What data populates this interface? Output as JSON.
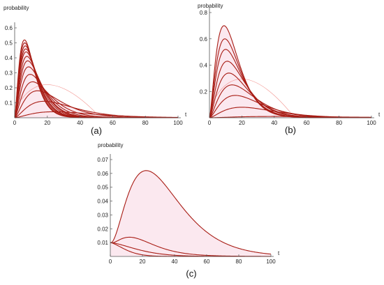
{
  "chart_data": [
    {
      "type": "line",
      "caption": "(a)",
      "ylabel": "probability",
      "xlabel": "t",
      "xlim": [
        0,
        100
      ],
      "ylim": [
        0,
        0.6
      ],
      "xticks": [
        0,
        20,
        40,
        60,
        80,
        100
      ],
      "xtick_labels": [
        "0",
        "20",
        "40",
        "60",
        "80",
        "100"
      ],
      "yticks": [
        0.1,
        0.2,
        0.3,
        0.4,
        0.5,
        0.6
      ],
      "ytick_labels": [
        "0.1",
        "0.2",
        "0.3",
        "0.4",
        "0.5",
        "0.6"
      ],
      "grid": false,
      "colors": {
        "curve": "#a81c14",
        "fill": "#f8d6e2",
        "highlight": "#e8281e"
      },
      "curves": [
        {
          "peak_t": 24,
          "peak_y": 0.04
        },
        {
          "peak_t": 18,
          "peak_y": 0.11
        },
        {
          "peak_t": 14,
          "peak_y": 0.18
        },
        {
          "peak_t": 11,
          "peak_y": 0.24
        },
        {
          "peak_t": 9.5,
          "peak_y": 0.29
        },
        {
          "peak_t": 8.5,
          "peak_y": 0.34
        },
        {
          "peak_t": 8,
          "peak_y": 0.38
        },
        {
          "peak_t": 7.5,
          "peak_y": 0.41
        },
        {
          "peak_t": 7,
          "peak_y": 0.44
        },
        {
          "peak_t": 6.8,
          "peak_y": 0.46
        },
        {
          "peak_t": 6.5,
          "peak_y": 0.48
        },
        {
          "peak_t": 6.2,
          "peak_y": 0.5
        },
        {
          "peak_t": 6,
          "peak_y": 0.52
        }
      ]
    },
    {
      "type": "line",
      "caption": "(b)",
      "ylabel": "probability",
      "xlabel": "t",
      "xlim": [
        0,
        100
      ],
      "ylim": [
        0,
        0.8
      ],
      "xticks": [
        0,
        20,
        40,
        60,
        80,
        100
      ],
      "xtick_labels": [
        "0",
        "20",
        "40",
        "60",
        "80",
        "100"
      ],
      "yticks": [
        0.2,
        0.4,
        0.6,
        0.8
      ],
      "ytick_labels": [
        "0.2",
        "0.4",
        "0.6",
        "0.8"
      ],
      "grid": false,
      "colors": {
        "curve": "#a81c14",
        "fill": "#f8d6e2",
        "highlight": "#e8281e"
      },
      "curves": [
        {
          "peak_t": 40,
          "peak_y": 0.01
        },
        {
          "peak_t": 20,
          "peak_y": 0.08
        },
        {
          "peak_t": 16,
          "peak_y": 0.17
        },
        {
          "peak_t": 14,
          "peak_y": 0.25
        },
        {
          "peak_t": 12,
          "peak_y": 0.34
        },
        {
          "peak_t": 11,
          "peak_y": 0.43
        },
        {
          "peak_t": 10,
          "peak_y": 0.52
        },
        {
          "peak_t": 9.5,
          "peak_y": 0.6
        },
        {
          "peak_t": 9,
          "peak_y": 0.7
        }
      ]
    },
    {
      "type": "line",
      "caption": "(c)",
      "ylabel": "probability",
      "xlabel": "t",
      "xlim": [
        0,
        100
      ],
      "ylim": [
        0,
        0.07
      ],
      "xticks": [
        0,
        20,
        40,
        60,
        80,
        100
      ],
      "xtick_labels": [
        "0",
        "20",
        "40",
        "60",
        "80",
        "100"
      ],
      "yticks": [
        0.01,
        0.02,
        0.03,
        0.04,
        0.05,
        0.06,
        0.07
      ],
      "ytick_labels": [
        "0.01",
        "0.02",
        "0.03",
        "0.04",
        "0.05",
        "0.06",
        "0.07"
      ],
      "grid": false,
      "colors": {
        "curve": "#a81c14",
        "fill": "#f8d6e2",
        "highlight": "#e8281e"
      },
      "curves": [
        {
          "start_y": 0.01,
          "peak_t": 23,
          "peak_y": 0.062,
          "width": 13
        },
        {
          "start_y": 0.01,
          "peak_t": 15,
          "peak_y": 0.0135,
          "width": 18
        },
        {
          "start_y": 0.01,
          "peak_t": 0,
          "peak_y": 0.01,
          "decay": 22
        },
        {
          "start_y": 0.01,
          "peak_t": 0,
          "peak_y": 0.01,
          "decay": 12
        }
      ]
    }
  ]
}
